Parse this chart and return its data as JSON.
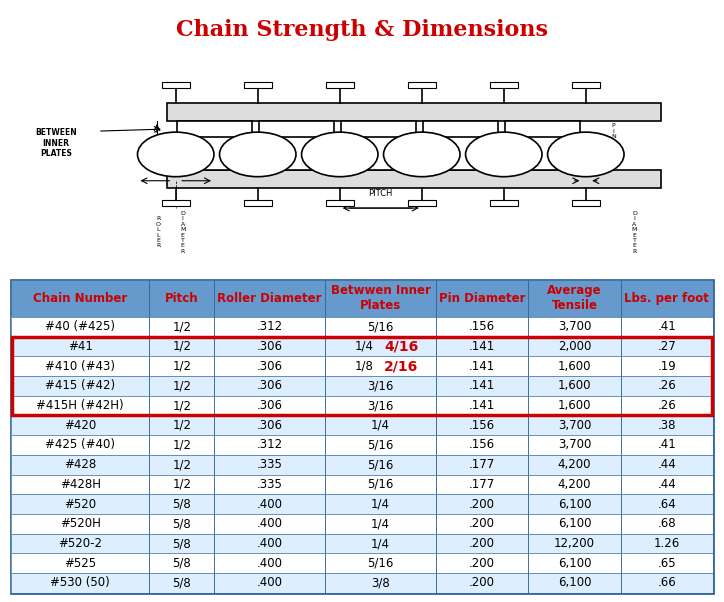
{
  "title": "Chain Strength & Dimensions",
  "title_color": "#CC0000",
  "title_fontsize": 16,
  "bg_color": "#FFFFFF",
  "headers": [
    "Chain Number",
    "Pitch",
    "Roller Diameter",
    "Betwwen Inner\nPlates",
    "Pin Diameter",
    "Average\nTensile",
    "Lbs. per foot"
  ],
  "header_bg": "#6699CC",
  "header_text_color": "#CC0000",
  "col_widths": [
    1.5,
    0.7,
    1.2,
    1.2,
    1.0,
    1.0,
    1.0
  ],
  "rows": [
    [
      "#40 (#425)",
      "1/2",
      ".312",
      "5/16",
      ".156",
      "3,700",
      ".41"
    ],
    [
      "#41",
      "1/2",
      ".306",
      "1/4  4/16",
      ".141",
      "2,000",
      ".27"
    ],
    [
      "#410 (#43)",
      "1/2",
      ".306",
      "1/8  2/16",
      ".141",
      "1,600",
      ".19"
    ],
    [
      "#415 (#42)",
      "1/2",
      ".306",
      "3/16",
      ".141",
      "1,600",
      ".26"
    ],
    [
      "#415H (#42H)",
      "1/2",
      ".306",
      "3/16",
      ".141",
      "1,600",
      ".26"
    ],
    [
      "#420",
      "1/2",
      ".306",
      "1/4",
      ".156",
      "3,700",
      ".38"
    ],
    [
      "#425 (#40)",
      "1/2",
      ".312",
      "5/16",
      ".156",
      "3,700",
      ".41"
    ],
    [
      "#428",
      "1/2",
      ".335",
      "5/16",
      ".177",
      "4,200",
      ".44"
    ],
    [
      "#428H",
      "1/2",
      ".335",
      "5/16",
      ".177",
      "4,200",
      ".44"
    ],
    [
      "#520",
      "5/8",
      ".400",
      "1/4",
      ".200",
      "6,100",
      ".64"
    ],
    [
      "#520H",
      "5/8",
      ".400",
      "1/4",
      ".200",
      "6,100",
      ".68"
    ],
    [
      "#520-2",
      "5/8",
      ".400",
      "1/4",
      ".200",
      "12,200",
      "1.26"
    ],
    [
      "#525",
      "5/8",
      ".400",
      "5/16",
      ".200",
      "6,100",
      ".65"
    ],
    [
      "#530 (50)",
      "5/8",
      ".400",
      "3/8",
      ".200",
      "6,100",
      ".66"
    ]
  ],
  "red_border_rows": [
    1,
    2,
    3,
    4
  ],
  "row_colors": [
    "#FFFFFF",
    "#DDEEFF",
    "#FFFFFF",
    "#DDEEFF",
    "#FFFFFF",
    "#DDEEFF",
    "#FFFFFF",
    "#DDEEFF",
    "#FFFFFF",
    "#DDEEFF",
    "#FFFFFF",
    "#DDEEFF",
    "#FFFFFF",
    "#DDEEFF"
  ],
  "border_color": "#336699",
  "table_border_color": "#336699",
  "red_border_color": "#CC0000",
  "cell_text_color": "#000000",
  "cell_fontsize": 8.5,
  "header_fontsize": 8.5,
  "inner_plates_special_rows": [
    1,
    2
  ],
  "inner_plates_special_color": "#CC0000"
}
